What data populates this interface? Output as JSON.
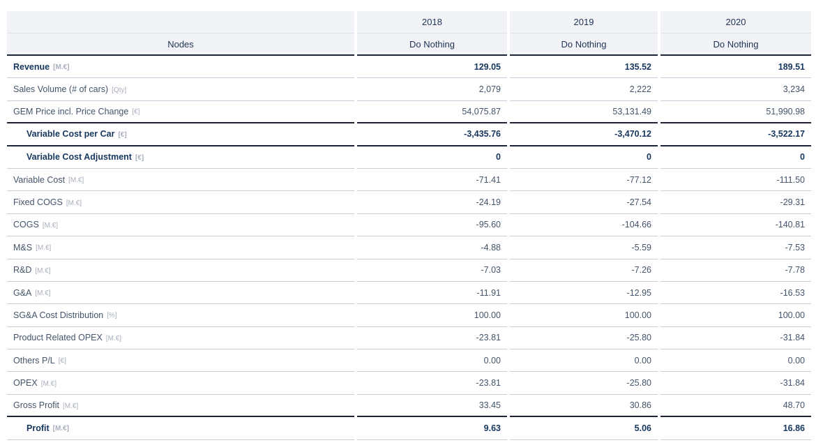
{
  "table": {
    "nodes_header": "Nodes",
    "year_columns": [
      {
        "year": "2018",
        "scenario": "Do Nothing"
      },
      {
        "year": "2019",
        "scenario": "Do Nothing"
      },
      {
        "year": "2020",
        "scenario": "Do Nothing"
      }
    ],
    "rows": [
      {
        "label": "Revenue",
        "unit": "[M.€]",
        "emphasis": true,
        "indent": false,
        "thick_border_below": false,
        "values": [
          "129.05",
          "135.52",
          "189.51"
        ]
      },
      {
        "label": "Sales Volume (# of cars)",
        "unit": "[Qty]",
        "emphasis": false,
        "indent": false,
        "thick_border_below": false,
        "values": [
          "2,079",
          "2,222",
          "3,234"
        ]
      },
      {
        "label": "GEM Price incl. Price Change",
        "unit": "[€]",
        "emphasis": false,
        "indent": false,
        "thick_border_below": true,
        "values": [
          "54,075.87",
          "53,131.49",
          "51,990.98"
        ]
      },
      {
        "label": "Variable Cost per Car",
        "unit": "[€]",
        "emphasis": true,
        "indent": true,
        "thick_border_below": true,
        "values": [
          "-3,435.76",
          "-3,470.12",
          "-3,522.17"
        ]
      },
      {
        "label": "Variable Cost Adjustment",
        "unit": "[€]",
        "emphasis": true,
        "indent": true,
        "thick_border_below": false,
        "values": [
          "0",
          "0",
          "0"
        ]
      },
      {
        "label": "Variable Cost",
        "unit": "[M.€]",
        "emphasis": false,
        "indent": false,
        "thick_border_below": false,
        "values": [
          "-71.41",
          "-77.12",
          "-111.50"
        ]
      },
      {
        "label": "Fixed COGS",
        "unit": "[M.€]",
        "emphasis": false,
        "indent": false,
        "thick_border_below": false,
        "values": [
          "-24.19",
          "-27.54",
          "-29.31"
        ]
      },
      {
        "label": "COGS",
        "unit": "[M.€]",
        "emphasis": false,
        "indent": false,
        "thick_border_below": false,
        "values": [
          "-95.60",
          "-104.66",
          "-140.81"
        ]
      },
      {
        "label": "M&S",
        "unit": "[M.€]",
        "emphasis": false,
        "indent": false,
        "thick_border_below": false,
        "values": [
          "-4.88",
          "-5.59",
          "-7.53"
        ]
      },
      {
        "label": "R&D",
        "unit": "[M.€]",
        "emphasis": false,
        "indent": false,
        "thick_border_below": false,
        "values": [
          "-7.03",
          "-7.26",
          "-7.78"
        ]
      },
      {
        "label": "G&A",
        "unit": "[M.€]",
        "emphasis": false,
        "indent": false,
        "thick_border_below": false,
        "values": [
          "-11.91",
          "-12.95",
          "-16.53"
        ]
      },
      {
        "label": "SG&A Cost Distribution",
        "unit": "[%]",
        "emphasis": false,
        "indent": false,
        "thick_border_below": false,
        "values": [
          "100.00",
          "100.00",
          "100.00"
        ]
      },
      {
        "label": "Product Related OPEX",
        "unit": "[M.€]",
        "emphasis": false,
        "indent": false,
        "thick_border_below": false,
        "values": [
          "-23.81",
          "-25.80",
          "-31.84"
        ]
      },
      {
        "label": "Others P/L",
        "unit": "[€]",
        "emphasis": false,
        "indent": false,
        "thick_border_below": false,
        "values": [
          "0.00",
          "0.00",
          "0.00"
        ]
      },
      {
        "label": "OPEX",
        "unit": "[M.€]",
        "emphasis": false,
        "indent": false,
        "thick_border_below": false,
        "values": [
          "-23.81",
          "-25.80",
          "-31.84"
        ]
      },
      {
        "label": "Gross Profit",
        "unit": "[M.€]",
        "emphasis": false,
        "indent": false,
        "thick_border_below": true,
        "values": [
          "33.45",
          "30.86",
          "48.70"
        ]
      },
      {
        "label": "Profit",
        "unit": "[M.€]",
        "emphasis": true,
        "indent": true,
        "thick_border_below": false,
        "values": [
          "9.63",
          "5.06",
          "16.86"
        ]
      }
    ]
  },
  "colors": {
    "header_bg": "#f2f3f7",
    "accent_navy": "#17375e",
    "text_regular": "#44546a",
    "unit_gray": "#a8aebc",
    "row_border": "#c7ccd8",
    "strong_border": "#1b2434"
  }
}
